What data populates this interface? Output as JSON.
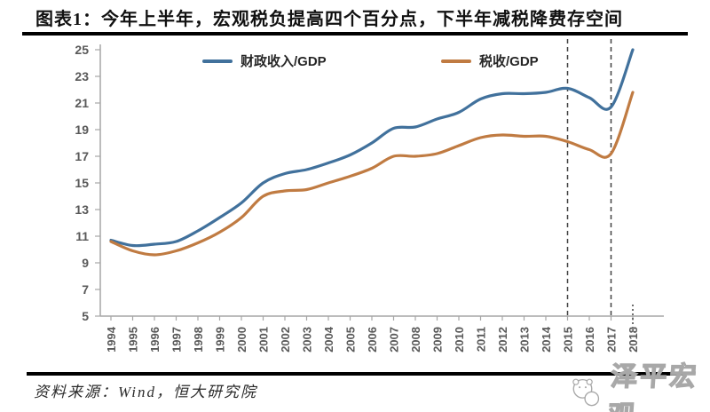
{
  "title": "图表1：今年上半年，宏观税负提高四个百分点，下半年减税降费存空间",
  "source": "资料来源：Wind，恒大研究院",
  "watermark": "泽平宏观",
  "colors": {
    "series_fiscal": "#41719C",
    "series_tax": "#C07B42",
    "axis": "#a6a6a6",
    "tick_label": "#595959",
    "dashed_line": "#404040",
    "rule": "#000000"
  },
  "chart_data": {
    "type": "line",
    "title": "图表1：今年上半年，宏观税负提高四个百分点，下半年减税降费存空间",
    "xlabel": "",
    "ylabel": "",
    "x": [
      1994,
      1995,
      1996,
      1997,
      1998,
      1999,
      2000,
      2001,
      2002,
      2003,
      2004,
      2005,
      2006,
      2007,
      2008,
      2009,
      2010,
      2011,
      2012,
      2013,
      2014,
      2015,
      2016,
      2017,
      2018
    ],
    "series": [
      {
        "name": "财政收入/GDP",
        "color": "#41719C",
        "values": [
          10.7,
          10.3,
          10.4,
          10.6,
          11.4,
          12.4,
          13.5,
          15.0,
          15.7,
          16.0,
          16.5,
          17.1,
          18.0,
          19.1,
          19.2,
          19.8,
          20.3,
          21.3,
          21.7,
          21.7,
          21.8,
          22.1,
          21.4,
          20.7,
          25.0
        ]
      },
      {
        "name": "税收/GDP",
        "color": "#C07B42",
        "values": [
          10.6,
          9.9,
          9.6,
          9.9,
          10.5,
          11.3,
          12.4,
          14.0,
          14.4,
          14.5,
          15.0,
          15.5,
          16.1,
          17.0,
          17.0,
          17.2,
          17.8,
          18.4,
          18.6,
          18.5,
          18.5,
          18.1,
          17.5,
          17.2,
          21.8
        ]
      }
    ],
    "ylim": [
      5,
      25
    ],
    "ytick_step": 2,
    "grid": false,
    "legend_position": "top",
    "annotations": {
      "dashed_vlines_x": [
        2015,
        2017
      ],
      "dotted_tick_x": 2018
    }
  }
}
